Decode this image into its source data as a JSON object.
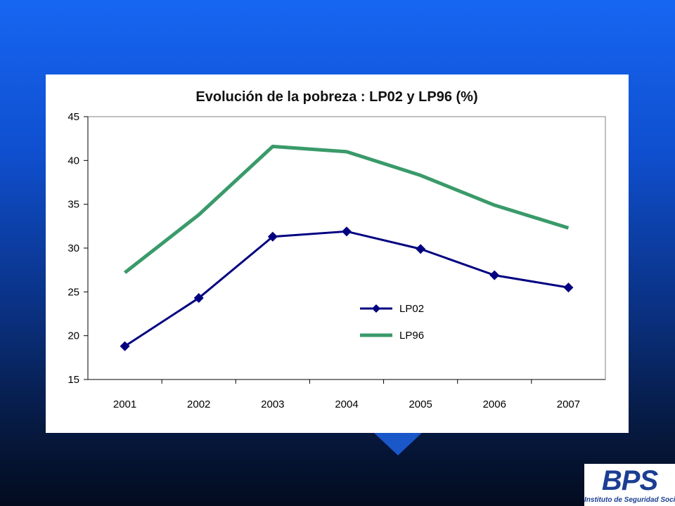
{
  "chart_data": {
    "type": "line",
    "title": "Evolución de la pobreza : LP02 y LP96 (%)",
    "categories": [
      "2001",
      "2002",
      "2003",
      "2004",
      "2005",
      "2006",
      "2007"
    ],
    "ylim": [
      15,
      45
    ],
    "yticks": [
      "15",
      "20",
      "25",
      "30",
      "35",
      "40",
      "45"
    ],
    "grid": false,
    "legend_position": "center-right",
    "series": [
      {
        "name": "LP02",
        "values": [
          18.8,
          24.3,
          31.3,
          31.9,
          29.9,
          26.9,
          25.5
        ],
        "color": "#000080",
        "marker": "diamond"
      },
      {
        "name": "LP96",
        "values": [
          27.2,
          33.8,
          41.6,
          41.0,
          38.3,
          34.9,
          32.3
        ],
        "color": "#3a9a6a",
        "marker": "none"
      }
    ]
  },
  "logo": {
    "mark": "BPS",
    "subtitle": "Instituto de Seguridad Social"
  },
  "colors": {
    "background_top": "#1766f2",
    "background_bottom": "#030b1e",
    "panel": "#ffffff",
    "accent": "#1a57c9"
  }
}
